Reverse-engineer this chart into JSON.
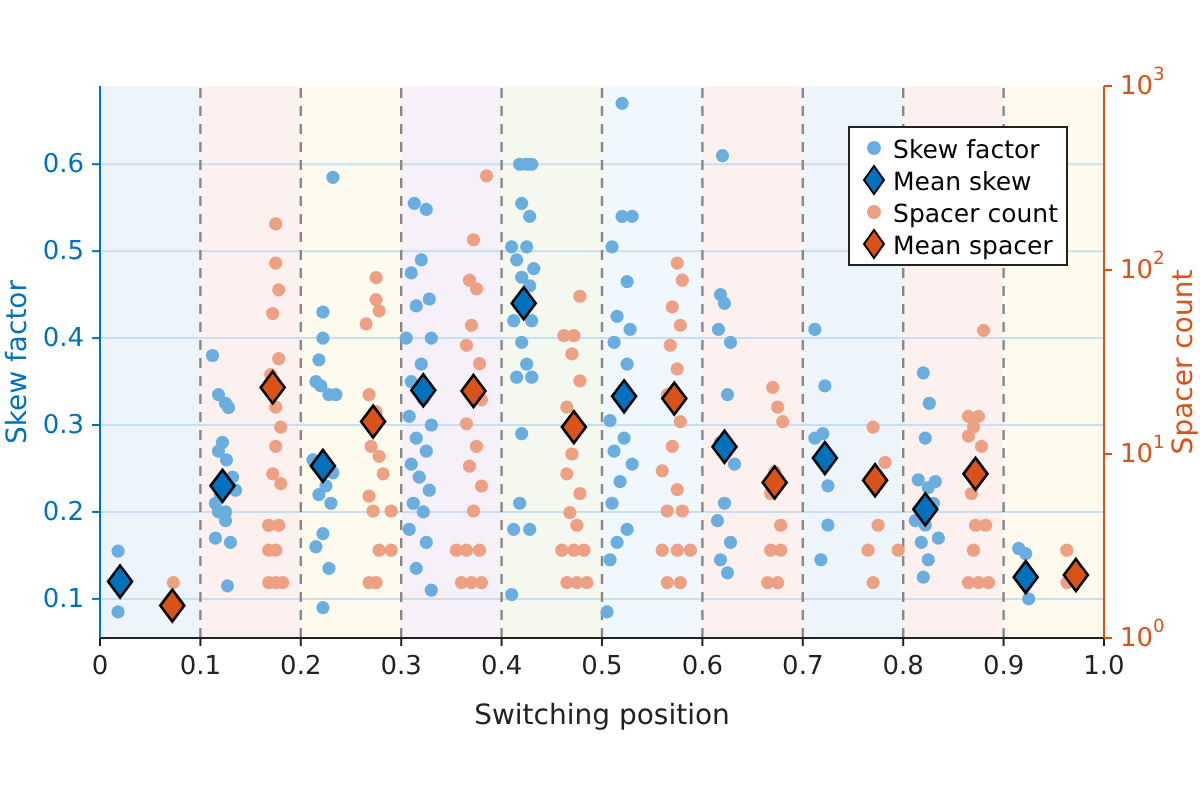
{
  "chart_data": {
    "type": "scatter",
    "xlabel": "Switching position",
    "ylabel": "Skew factor",
    "y2label": "Spacer count",
    "xlim": [
      0,
      1
    ],
    "xticks": [
      0,
      0.1,
      0.2,
      0.3,
      0.4,
      0.5,
      0.6,
      0.7,
      0.8,
      0.9,
      {
        "value": 1,
        "label": "1.0"
      }
    ],
    "ylim": [
      0.055,
      0.69
    ],
    "yticks": [
      0.1,
      0.2,
      0.3,
      0.4,
      0.5,
      0.6
    ],
    "y2lim": [
      1,
      1000
    ],
    "y2ticks": [
      {
        "value": 1,
        "label": "10$^{0}$"
      },
      {
        "value": 10,
        "label": "10$^{1}$"
      },
      {
        "value": 100,
        "label": "10$^{2}$"
      },
      {
        "value": 1000,
        "label": "10$^{3}$"
      }
    ],
    "log": "y2",
    "grid": "y",
    "legend": "top right",
    "bands": [
      {
        "axis": "x",
        "from": 0,
        "to": 0.1,
        "color": "#eef5fa"
      },
      {
        "axis": "x",
        "from": 0.1,
        "to": 0.2,
        "color": "#fcf1ee"
      },
      {
        "axis": "x",
        "from": 0.2,
        "to": 0.3,
        "color": "#fefaee"
      },
      {
        "axis": "x",
        "from": 0.3,
        "to": 0.4,
        "color": "#f6f0f8"
      },
      {
        "axis": "x",
        "from": 0.4,
        "to": 0.5,
        "color": "#f4f8ee"
      },
      {
        "axis": "x",
        "from": 0.5,
        "to": 0.6,
        "color": "#f1f8fd"
      },
      {
        "axis": "x",
        "from": 0.6,
        "to": 0.7,
        "color": "#fcf1ee"
      },
      {
        "axis": "x",
        "from": 0.7,
        "to": 0.8,
        "color": "#eef5fa"
      },
      {
        "axis": "x",
        "from": 0.8,
        "to": 0.9,
        "color": "#fcf1ee"
      },
      {
        "axis": "x",
        "from": 0.9,
        "to": 1,
        "color": "#fefaee"
      }
    ],
    "ref_lines": [
      {
        "axis": "x",
        "value": 0.1,
        "color": "#888888",
        "line_style": "dashed"
      },
      {
        "axis": "x",
        "value": 0.2,
        "color": "#888888",
        "line_style": "dashed"
      },
      {
        "axis": "x",
        "value": 0.3,
        "color": "#888888",
        "line_style": "dashed"
      },
      {
        "axis": "x",
        "value": 0.4,
        "color": "#888888",
        "line_style": "dashed"
      },
      {
        "axis": "x",
        "value": 0.5,
        "color": "#888888",
        "line_style": "dashed"
      },
      {
        "axis": "x",
        "value": 0.6,
        "color": "#888888",
        "line_style": "dashed"
      },
      {
        "axis": "x",
        "value": 0.7,
        "color": "#888888",
        "line_style": "dashed"
      },
      {
        "axis": "x",
        "value": 0.8,
        "color": "#888888",
        "line_style": "dashed"
      },
      {
        "axis": "x",
        "value": 0.9,
        "color": "#888888",
        "line_style": "dashed"
      }
    ],
    "series": [
      {
        "name": "Skew factor",
        "marker": "circle",
        "color": "#6aaedf",
        "x": [
          0.018,
          0.018,
          0.112,
          0.118,
          0.125,
          0.128,
          0.122,
          0.118,
          0.126,
          0.132,
          0.135,
          0.12,
          0.115,
          0.118,
          0.125,
          0.125,
          0.115,
          0.13,
          0.127,
          0.232,
          0.222,
          0.222,
          0.218,
          0.215,
          0.22,
          0.228,
          0.235,
          0.212,
          0.232,
          0.225,
          0.218,
          0.23,
          0.222,
          0.215,
          0.228,
          0.222,
          0.313,
          0.325,
          0.32,
          0.31,
          0.328,
          0.315,
          0.305,
          0.33,
          0.32,
          0.31,
          0.322,
          0.308,
          0.33,
          0.315,
          0.325,
          0.31,
          0.318,
          0.328,
          0.312,
          0.322,
          0.308,
          0.325,
          0.315,
          0.33,
          0.418,
          0.425,
          0.43,
          0.42,
          0.428,
          0.41,
          0.425,
          0.415,
          0.432,
          0.42,
          0.428,
          0.412,
          0.43,
          0.42,
          0.425,
          0.415,
          0.43,
          0.42,
          0.418,
          0.428,
          0.412,
          0.41,
          0.52,
          0.52,
          0.53,
          0.51,
          0.525,
          0.515,
          0.528,
          0.512,
          0.525,
          0.508,
          0.522,
          0.512,
          0.53,
          0.518,
          0.51,
          0.525,
          0.515,
          0.508,
          0.505,
          0.62,
          0.618,
          0.622,
          0.616,
          0.628,
          0.625,
          0.618,
          0.632,
          0.622,
          0.615,
          0.628,
          0.618,
          0.625,
          0.712,
          0.722,
          0.72,
          0.712,
          0.725,
          0.725,
          0.718,
          0.82,
          0.826,
          0.822,
          0.815,
          0.832,
          0.825,
          0.83,
          0.812,
          0.822,
          0.835,
          0.818,
          0.825,
          0.82,
          0.915,
          0.922,
          0.925
        ],
        "values": [
          0.155,
          0.085,
          0.38,
          0.335,
          0.325,
          0.32,
          0.28,
          0.27,
          0.26,
          0.24,
          0.225,
          0.22,
          0.21,
          0.2,
          0.2,
          0.19,
          0.17,
          0.165,
          0.115,
          0.585,
          0.43,
          0.4,
          0.375,
          0.35,
          0.345,
          0.335,
          0.335,
          0.26,
          0.245,
          0.23,
          0.22,
          0.21,
          0.175,
          0.16,
          0.135,
          0.09,
          0.555,
          0.548,
          0.49,
          0.475,
          0.445,
          0.437,
          0.4,
          0.4,
          0.37,
          0.35,
          0.33,
          0.31,
          0.3,
          0.285,
          0.27,
          0.255,
          0.24,
          0.225,
          0.21,
          0.2,
          0.18,
          0.165,
          0.135,
          0.11,
          0.6,
          0.6,
          0.6,
          0.555,
          0.54,
          0.505,
          0.505,
          0.49,
          0.48,
          0.47,
          0.46,
          0.42,
          0.42,
          0.395,
          0.37,
          0.355,
          0.355,
          0.29,
          0.21,
          0.18,
          0.18,
          0.105,
          0.67,
          0.54,
          0.54,
          0.505,
          0.465,
          0.425,
          0.41,
          0.395,
          0.37,
          0.305,
          0.285,
          0.27,
          0.255,
          0.235,
          0.21,
          0.18,
          0.165,
          0.145,
          0.085,
          0.61,
          0.45,
          0.44,
          0.41,
          0.395,
          0.335,
          0.28,
          0.255,
          0.21,
          0.19,
          0.165,
          0.145,
          0.13,
          0.41,
          0.345,
          0.29,
          0.285,
          0.23,
          0.185,
          0.145,
          0.36,
          0.325,
          0.285,
          0.237,
          0.235,
          0.228,
          0.21,
          0.19,
          0.185,
          0.17,
          0.165,
          0.145,
          0.125,
          0.158,
          0.152,
          0.1
        ]
      },
      {
        "name": "Mean skew",
        "marker": "diamond",
        "color": "#0072bd",
        "x": [
          0.02,
          0.122,
          0.222,
          0.322,
          0.422,
          0.522,
          0.622,
          0.722,
          0.822,
          0.922
        ],
        "values": [
          0.12,
          0.23,
          0.253,
          0.34,
          0.44,
          0.333,
          0.275,
          0.262,
          0.203,
          0.125
        ]
      },
      {
        "name": "Spacer count",
        "marker": "circle",
        "color": "#eea085",
        "axis": "y2",
        "x": [
          0.073,
          0.175,
          0.175,
          0.178,
          0.172,
          0.178,
          0.17,
          0.175,
          0.18,
          0.175,
          0.172,
          0.18,
          0.168,
          0.178,
          0.168,
          0.175,
          0.168,
          0.175,
          0.182,
          0.275,
          0.275,
          0.278,
          0.265,
          0.268,
          0.275,
          0.27,
          0.278,
          0.282,
          0.268,
          0.272,
          0.29,
          0.278,
          0.29,
          0.268,
          0.275,
          0.385,
          0.372,
          0.368,
          0.375,
          0.37,
          0.365,
          0.378,
          0.38,
          0.365,
          0.375,
          0.368,
          0.38,
          0.372,
          0.355,
          0.365,
          0.378,
          0.36,
          0.37,
          0.38,
          0.478,
          0.462,
          0.472,
          0.47,
          0.478,
          0.465,
          0.47,
          0.465,
          0.478,
          0.468,
          0.475,
          0.46,
          0.472,
          0.482,
          0.465,
          0.475,
          0.485,
          0.575,
          0.58,
          0.57,
          0.578,
          0.568,
          0.575,
          0.565,
          0.578,
          0.57,
          0.56,
          0.575,
          0.565,
          0.58,
          0.56,
          0.575,
          0.588,
          0.565,
          0.578,
          0.67,
          0.675,
          0.68,
          0.672,
          0.668,
          0.678,
          0.668,
          0.678,
          0.665,
          0.675,
          0.77,
          0.782,
          0.775,
          0.765,
          0.795,
          0.77,
          0.88,
          0.865,
          0.875,
          0.87,
          0.865,
          0.878,
          0.868,
          0.872,
          0.882,
          0.87,
          0.865,
          0.875,
          0.885,
          0.963,
          0.963
        ],
        "values": [
          2,
          178,
          109,
          78,
          58,
          33,
          27,
          18,
          14,
          11,
          7.8,
          6.9,
          4.1,
          4.1,
          3,
          3,
          2,
          2,
          2,
          91,
          69,
          60,
          51,
          21,
          17,
          11,
          9.7,
          7.8,
          5.9,
          4.9,
          4.9,
          3,
          3,
          2,
          2,
          325,
          146,
          88,
          79,
          50,
          39,
          31,
          19.7,
          14.6,
          11,
          8.6,
          6.7,
          4.9,
          3,
          3,
          3,
          2,
          2,
          2,
          72,
          44,
          44,
          35,
          25,
          18,
          10,
          7.8,
          6.1,
          4.8,
          4.1,
          3,
          3,
          3,
          2,
          2,
          2,
          109,
          88,
          63,
          50,
          39,
          29,
          21,
          15,
          11,
          8.1,
          6.4,
          4.9,
          4.9,
          3,
          3,
          3,
          2,
          2,
          23,
          18,
          15,
          8,
          6.1,
          4.1,
          3,
          3,
          2,
          2,
          14,
          9,
          4.1,
          3,
          3,
          2,
          47,
          16,
          16,
          14,
          12.5,
          11,
          6.1,
          4.1,
          4.1,
          3,
          2,
          2,
          2,
          3,
          2
        ]
      },
      {
        "name": "Mean spacer",
        "marker": "diamond",
        "color": "#d95319",
        "axis": "y2",
        "x": [
          0.072,
          0.172,
          0.272,
          0.372,
          0.472,
          0.572,
          0.672,
          0.772,
          0.872,
          0.972
        ],
        "values": [
          1.5,
          23,
          15,
          22,
          14,
          20,
          7,
          7.2,
          7.8,
          2.2
        ]
      }
    ]
  }
}
